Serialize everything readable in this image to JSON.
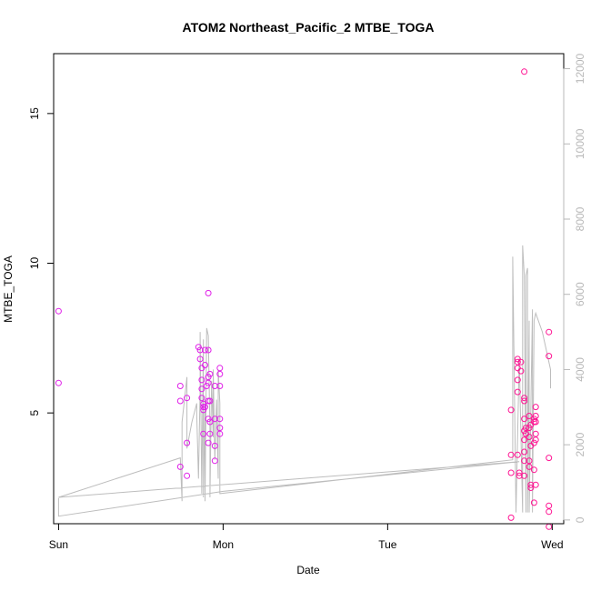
{
  "chart_data": {
    "type": "scatter",
    "title": "ATOM2 Northeast_Pacific_2 MTBE_TOGA",
    "xlabel": "Date",
    "ylabel": "MTBE_TOGA",
    "xlim": [
      -0.03,
      3.07
    ],
    "ylim": [
      1.3,
      17.0
    ],
    "y2lim": [
      -100,
      12400
    ],
    "x_ticks": [
      {
        "value": 0,
        "label": "Sun"
      },
      {
        "value": 1,
        "label": "Mon"
      },
      {
        "value": 2,
        "label": "Tue"
      },
      {
        "value": 3,
        "label": "Wed"
      }
    ],
    "y_ticks": [
      5,
      10,
      15
    ],
    "y2_ticks": [
      0,
      2000,
      4000,
      6000,
      8000,
      10000,
      12000
    ],
    "grid": false,
    "colors": {
      "points_primary": "#e020e8",
      "points_secondary": "#ff1493",
      "line": "#bdbdbd"
    },
    "series": [
      {
        "axis": "left",
        "style": "points",
        "points": [
          [
            0.0,
            8.4
          ],
          [
            0.0,
            6.0
          ],
          [
            0.74,
            5.9
          ],
          [
            0.74,
            5.4
          ],
          [
            0.74,
            3.2
          ],
          [
            0.78,
            5.5
          ],
          [
            0.78,
            4.0
          ],
          [
            0.78,
            2.9
          ],
          [
            0.85,
            7.2
          ],
          [
            0.86,
            7.1
          ],
          [
            0.86,
            6.8
          ],
          [
            0.87,
            6.5
          ],
          [
            0.87,
            6.1
          ],
          [
            0.87,
            5.8
          ],
          [
            0.87,
            5.5
          ],
          [
            0.88,
            5.3
          ],
          [
            0.88,
            5.2
          ],
          [
            0.88,
            5.1
          ],
          [
            0.88,
            4.3
          ],
          [
            0.89,
            7.1
          ],
          [
            0.89,
            6.6
          ],
          [
            0.89,
            5.2
          ],
          [
            0.9,
            5.9
          ],
          [
            0.91,
            9.0
          ],
          [
            0.91,
            7.1
          ],
          [
            0.91,
            6.2
          ],
          [
            0.91,
            6.0
          ],
          [
            0.91,
            5.4
          ],
          [
            0.91,
            4.8
          ],
          [
            0.91,
            4.0
          ],
          [
            0.92,
            6.3
          ],
          [
            0.92,
            5.4
          ],
          [
            0.92,
            4.7
          ],
          [
            0.92,
            4.3
          ],
          [
            0.95,
            5.9
          ],
          [
            0.95,
            4.8
          ],
          [
            0.95,
            3.9
          ],
          [
            0.95,
            3.4
          ],
          [
            0.98,
            6.5
          ],
          [
            0.98,
            6.3
          ],
          [
            0.98,
            5.9
          ],
          [
            0.98,
            4.8
          ],
          [
            0.98,
            4.5
          ],
          [
            0.98,
            4.3
          ]
        ]
      },
      {
        "axis": "left",
        "style": "points",
        "points": [
          [
            2.75,
            5.1
          ],
          [
            2.75,
            3.6
          ],
          [
            2.75,
            3.0
          ],
          [
            2.75,
            1.5
          ],
          [
            2.79,
            6.8
          ],
          [
            2.79,
            6.7
          ],
          [
            2.79,
            6.5
          ],
          [
            2.79,
            6.1
          ],
          [
            2.79,
            5.7
          ],
          [
            2.79,
            3.6
          ],
          [
            2.8,
            2.9
          ],
          [
            2.8,
            3.0
          ],
          [
            2.81,
            6.7
          ],
          [
            2.81,
            6.4
          ],
          [
            2.83,
            16.4
          ],
          [
            2.83,
            5.4
          ],
          [
            2.83,
            5.5
          ],
          [
            2.83,
            4.8
          ],
          [
            2.83,
            4.4
          ],
          [
            2.83,
            4.1
          ],
          [
            2.83,
            3.7
          ],
          [
            2.83,
            3.4
          ],
          [
            2.83,
            2.9
          ],
          [
            2.84,
            4.5
          ],
          [
            2.84,
            4.3
          ],
          [
            2.86,
            4.9
          ],
          [
            2.86,
            4.5
          ],
          [
            2.86,
            4.2
          ],
          [
            2.86,
            3.4
          ],
          [
            2.86,
            3.2
          ],
          [
            2.87,
            4.6
          ],
          [
            2.87,
            3.9
          ],
          [
            2.87,
            2.5
          ],
          [
            2.87,
            2.6
          ],
          [
            2.89,
            4.8
          ],
          [
            2.89,
            4.7
          ],
          [
            2.89,
            4.0
          ],
          [
            2.89,
            3.1
          ],
          [
            2.89,
            2.0
          ],
          [
            2.9,
            5.2
          ],
          [
            2.9,
            4.9
          ],
          [
            2.9,
            4.7
          ],
          [
            2.9,
            4.3
          ],
          [
            2.9,
            4.1
          ],
          [
            2.9,
            2.6
          ],
          [
            2.98,
            7.7
          ],
          [
            2.98,
            6.9
          ],
          [
            2.98,
            3.5
          ],
          [
            2.98,
            1.9
          ],
          [
            2.98,
            1.7
          ],
          [
            2.98,
            1.2
          ]
        ]
      },
      {
        "axis": "right",
        "style": "line",
        "points": [
          [
            0.0,
            580
          ],
          [
            0.0,
            100
          ],
          [
            1.0,
            760
          ],
          [
            2.8,
            1550
          ],
          [
            0.0,
            600
          ],
          [
            0.74,
            1650
          ],
          [
            0.75,
            500
          ],
          [
            0.75,
            2600
          ],
          [
            0.78,
            3800
          ],
          [
            0.78,
            1900
          ],
          [
            0.81,
            2600
          ],
          [
            0.84,
            3100
          ],
          [
            0.84,
            2800
          ],
          [
            0.85,
            1100
          ],
          [
            0.86,
            3500
          ],
          [
            0.86,
            5000
          ],
          [
            0.87,
            700
          ],
          [
            0.88,
            4800
          ],
          [
            0.88,
            600
          ],
          [
            0.89,
            3200
          ],
          [
            0.89,
            500
          ],
          [
            0.9,
            5100
          ],
          [
            0.91,
            4900
          ],
          [
            0.92,
            2400
          ],
          [
            0.92,
            600
          ],
          [
            0.93,
            3700
          ],
          [
            0.94,
            2200
          ],
          [
            0.94,
            4000
          ],
          [
            0.95,
            1600
          ],
          [
            0.96,
            3200
          ],
          [
            0.97,
            1100
          ],
          [
            0.97,
            4000
          ],
          [
            0.98,
            3100
          ],
          [
            0.98,
            700
          ],
          [
            2.76,
            1600
          ],
          [
            2.76,
            7000
          ],
          [
            2.78,
            200
          ],
          [
            2.8,
            4300
          ],
          [
            2.82,
            200
          ],
          [
            2.82,
            7300
          ],
          [
            2.83,
            6500
          ],
          [
            2.84,
            200
          ],
          [
            2.84,
            6500
          ],
          [
            2.85,
            6700
          ],
          [
            2.85,
            200
          ],
          [
            2.86,
            5300
          ],
          [
            2.86,
            200
          ],
          [
            2.88,
            5600
          ],
          [
            2.88,
            200
          ],
          [
            2.89,
            5300
          ],
          [
            2.9,
            5500
          ],
          [
            2.94,
            5000
          ],
          [
            2.99,
            4000
          ],
          [
            2.99,
            3500
          ]
        ]
      }
    ]
  }
}
